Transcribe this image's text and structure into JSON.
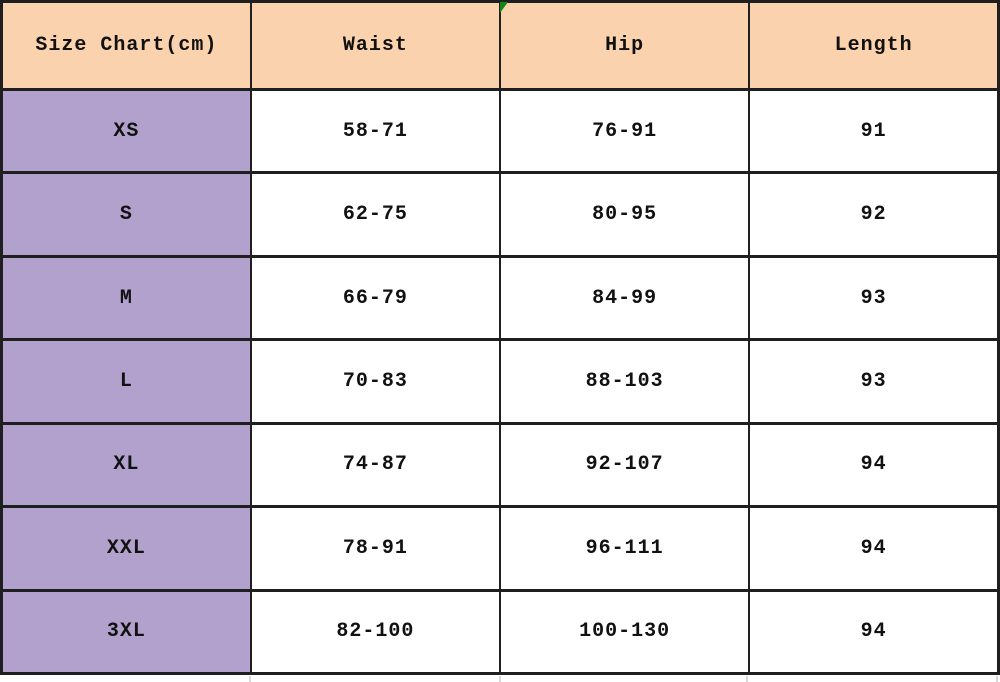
{
  "colors": {
    "header_bg": "#fbd2ae",
    "size_col_bg": "#b1a1cc",
    "cell_bg": "#ffffff",
    "border_color": "#1f1f1f",
    "text_color": "#111111",
    "marker_green": "#128712",
    "gridline_gray": "#d9d9d9"
  },
  "chart_data": {
    "type": "table",
    "title": "Size Chart(cm)",
    "columns": [
      "Size Chart(cm)",
      "Waist",
      "Hip",
      "Length"
    ],
    "rows": [
      [
        "XS",
        "58-71",
        "76-91",
        "91"
      ],
      [
        "S",
        "62-75",
        "80-95",
        "92"
      ],
      [
        "M",
        "66-79",
        "84-99",
        "93"
      ],
      [
        "L",
        "70-83",
        "88-103",
        "93"
      ],
      [
        "XL",
        "74-87",
        "92-107",
        "94"
      ],
      [
        "XXL",
        "78-91",
        "96-111",
        "94"
      ],
      [
        "3XL",
        "82-100",
        "100-130",
        "94"
      ]
    ]
  }
}
